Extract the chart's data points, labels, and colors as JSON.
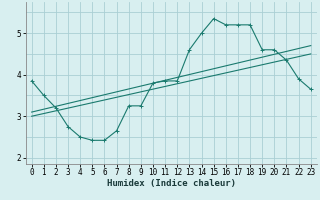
{
  "xlabel": "Humidex (Indice chaleur)",
  "bg_color": "#d8eff0",
  "grid_color": "#aacfd4",
  "line_color": "#1a7a6e",
  "xlim": [
    -0.5,
    23.5
  ],
  "ylim": [
    1.85,
    5.75
  ],
  "xticks": [
    0,
    1,
    2,
    3,
    4,
    5,
    6,
    7,
    8,
    9,
    10,
    11,
    12,
    13,
    14,
    15,
    16,
    17,
    18,
    19,
    20,
    21,
    22,
    23
  ],
  "yticks": [
    2,
    3,
    4,
    5
  ],
  "line1_x": [
    0,
    1,
    2,
    3,
    4,
    5,
    6,
    7,
    8,
    9,
    10,
    11,
    12,
    13,
    14,
    15,
    16,
    17,
    18,
    19,
    20,
    21,
    22,
    23
  ],
  "line1_y": [
    3.85,
    3.5,
    3.2,
    2.75,
    2.5,
    2.42,
    2.42,
    2.65,
    3.25,
    3.25,
    3.8,
    3.85,
    3.85,
    4.6,
    5.0,
    5.35,
    5.2,
    5.2,
    5.2,
    4.6,
    4.6,
    4.35,
    3.9,
    3.65
  ],
  "line2_x": [
    0,
    23
  ],
  "line2_y": [
    3.0,
    4.5
  ],
  "line3_x": [
    0,
    23
  ],
  "line3_y": [
    3.1,
    4.7
  ],
  "tick_fontsize": 5.5,
  "label_fontsize": 6.5
}
